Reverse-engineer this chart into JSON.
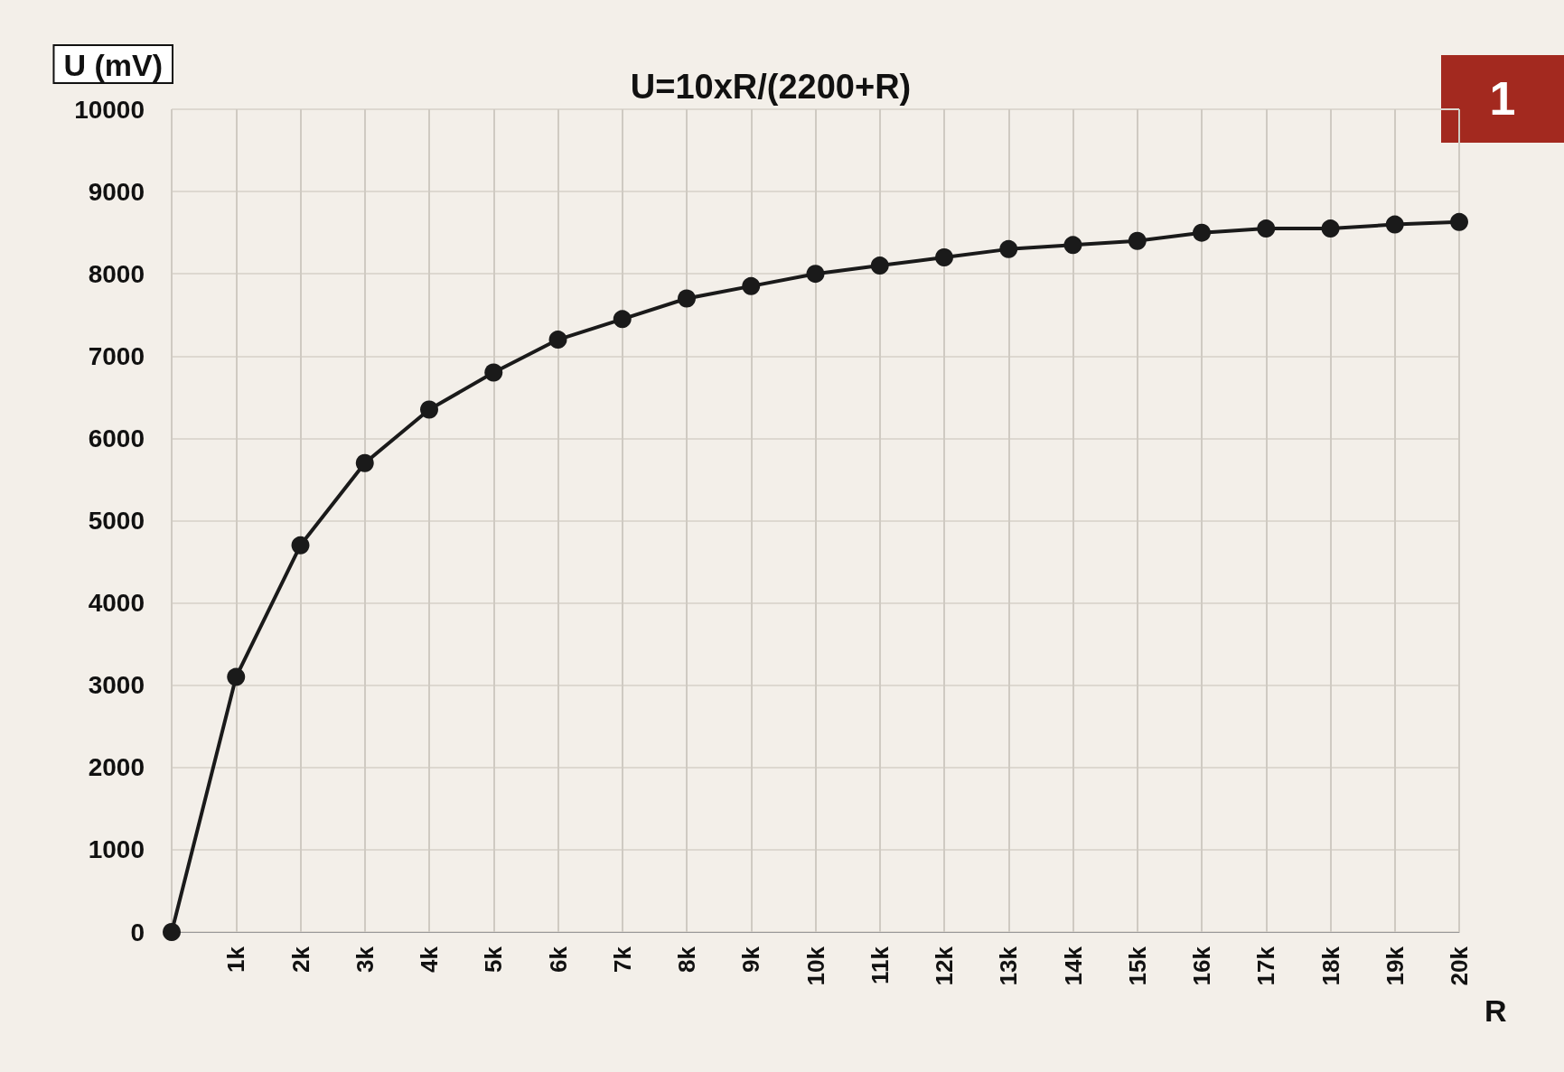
{
  "chart_data": {
    "type": "line",
    "title": "U=10xR/(2200+R)",
    "xlabel": "R",
    "ylabel": "U (mV)",
    "annotations": [
      "1"
    ],
    "categories": [
      null,
      "1k",
      "2k",
      "3k",
      "4k",
      "5k",
      "6k",
      "7k",
      "8k",
      "9k",
      "10k",
      "11k",
      "12k",
      "13k",
      "14k",
      "15k",
      "16k",
      "17k",
      "18k",
      "19k",
      "20k"
    ],
    "series": [
      {
        "color": "#1a1a1a",
        "values": [
          0,
          3100,
          4700,
          5700,
          6350,
          6800,
          7200,
          7450,
          7700,
          7850,
          8000,
          8100,
          8200,
          8300,
          8350,
          8400,
          8500,
          8550,
          8550,
          8600,
          8630
        ]
      }
    ],
    "ylim": [
      0,
      10000
    ],
    "yticks": [
      0,
      1000,
      2000,
      3000,
      4000,
      5000,
      6000,
      7000,
      8000,
      9000,
      10000
    ],
    "grid": true,
    "marker": "circle",
    "line_style": "solid"
  }
}
